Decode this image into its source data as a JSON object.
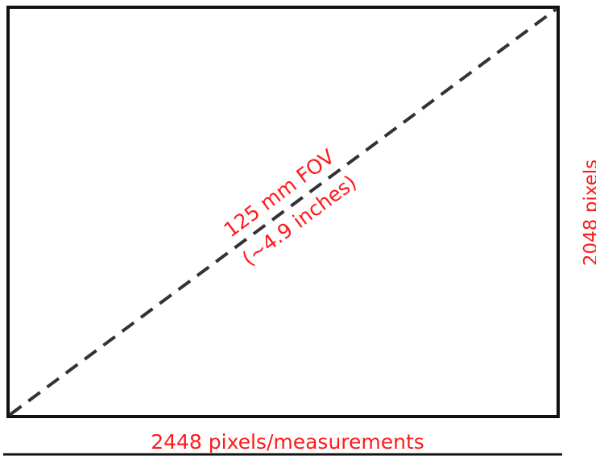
{
  "diagram": {
    "diagonal_label_line1": "125 mm  FOV",
    "diagonal_label_line2": "(~4.9 inches)",
    "height_label": "2048 pixels",
    "width_label": "2448 pixels/measurements"
  },
  "colors": {
    "label": "#ff1a1a",
    "frame": "#111111",
    "diagonal": "#333333",
    "background": "#ffffff"
  }
}
